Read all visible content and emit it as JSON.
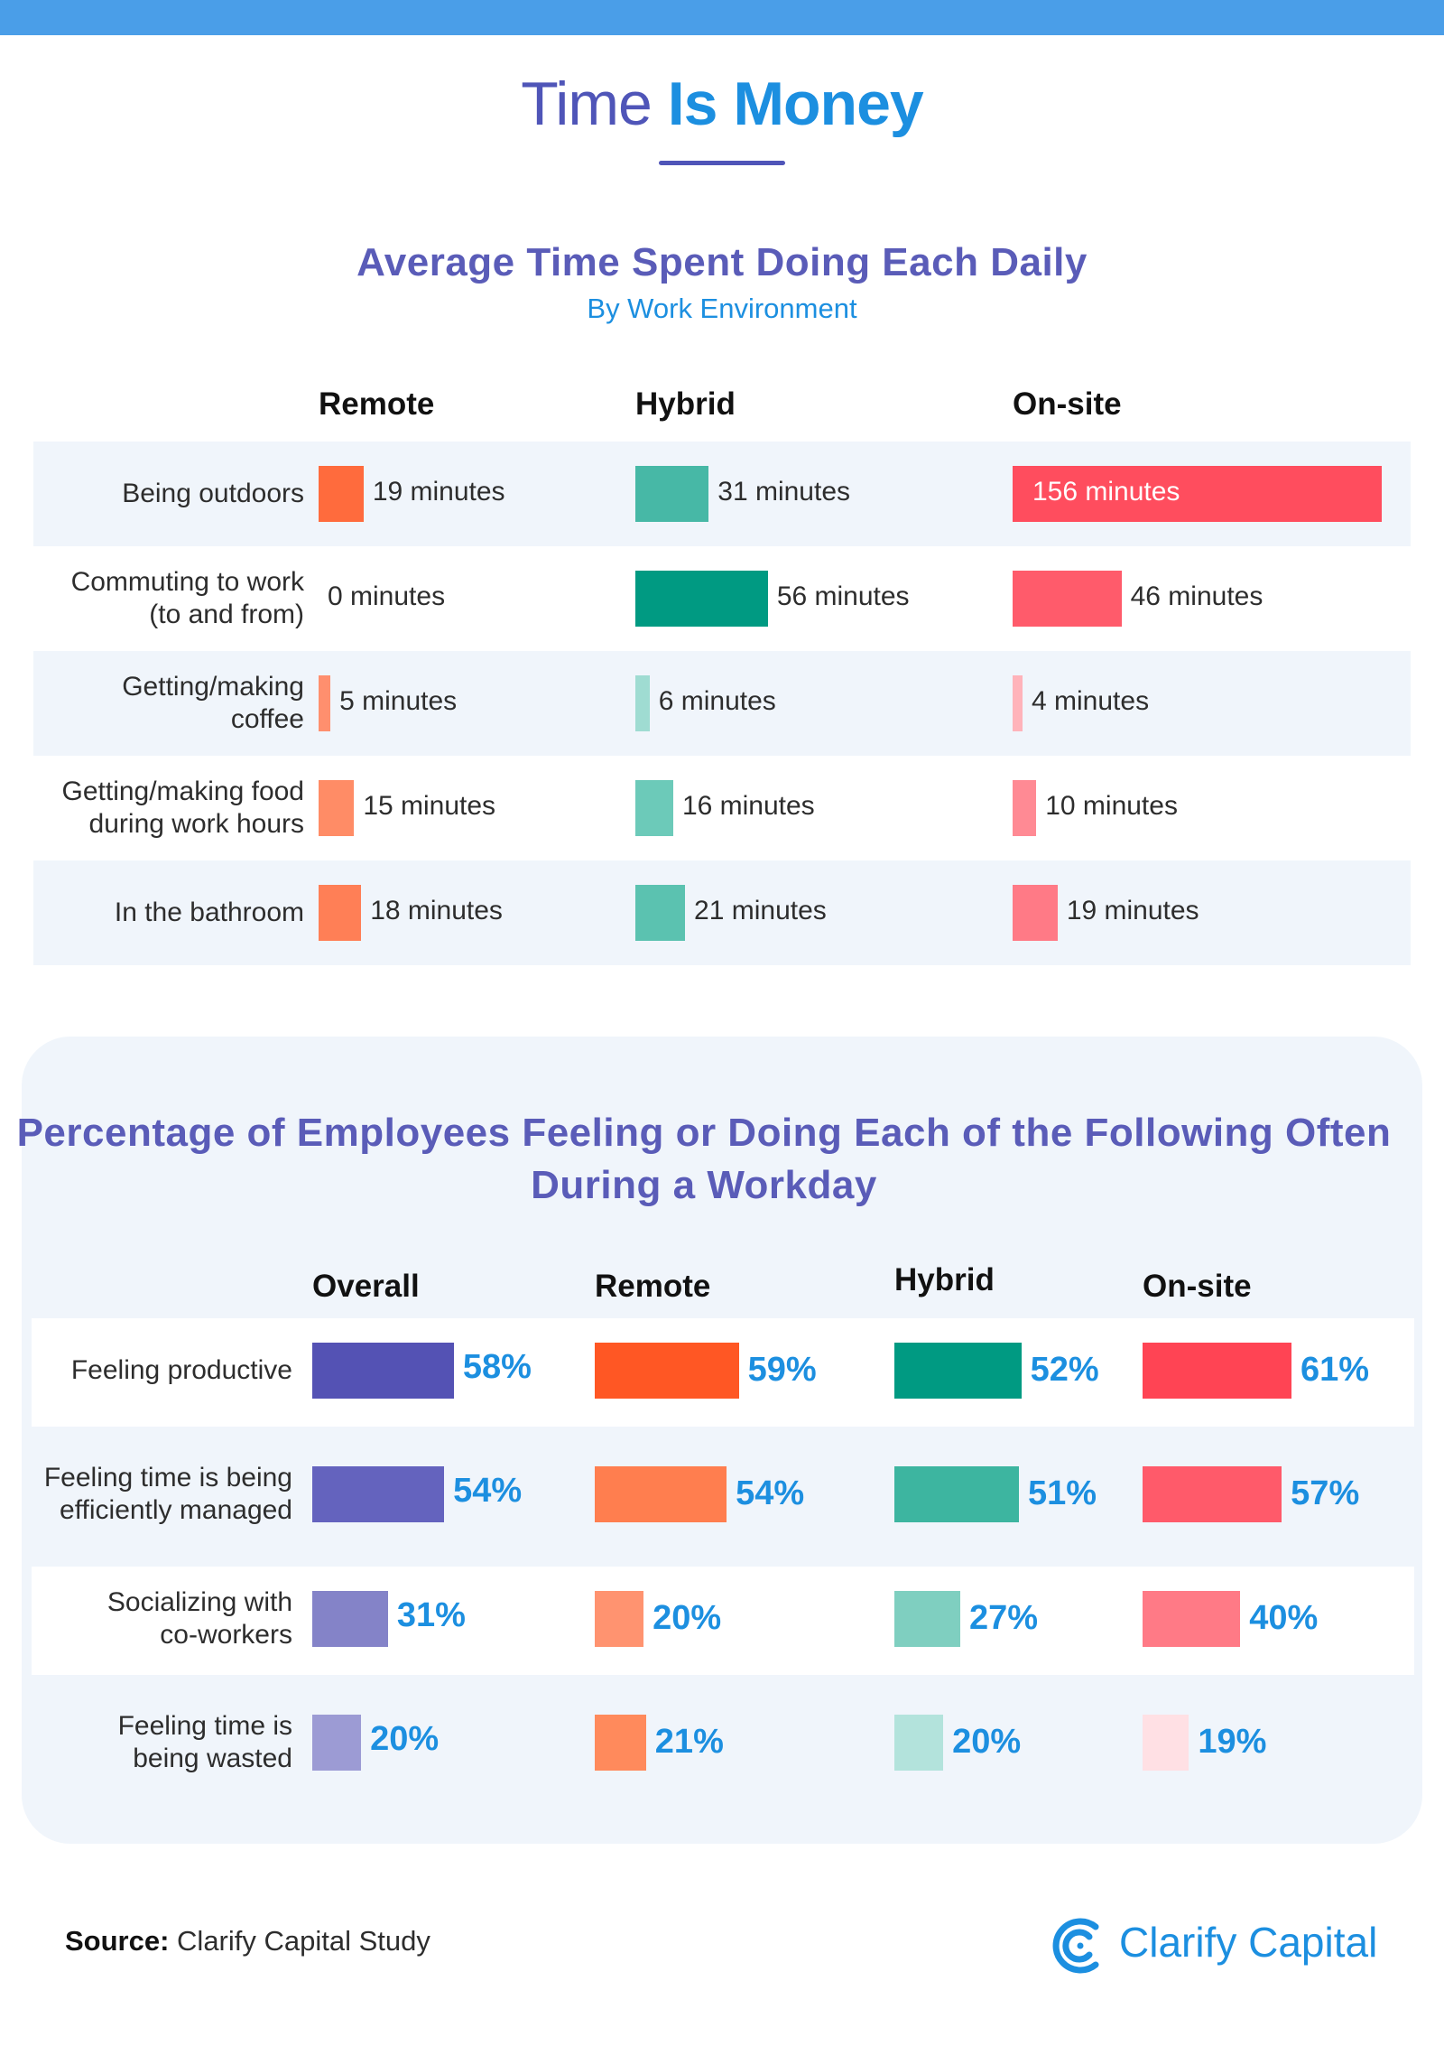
{
  "title": {
    "part1": "Time",
    "part2": "Is Money"
  },
  "source": {
    "label": "Source:",
    "text": "Clarify Capital Study"
  },
  "brand": {
    "name": "Clarify Capital",
    "logo_icon": "clarify-capital-logo-icon",
    "color": "#1c8fe0"
  },
  "chart_data": [
    {
      "type": "bar",
      "title": "Average Time Spent Doing Each Daily",
      "subtitle": "By Work Environment",
      "unit": "minutes",
      "categories": [
        "Being outdoors",
        "Commuting to work\n(to and from)",
        "Getting/making\ncoffee",
        "Getting/making food\nduring work hours",
        "In the bathroom"
      ],
      "series": [
        {
          "name": "Remote",
          "values": [
            19,
            0,
            5,
            15,
            18
          ],
          "labels": [
            "19 minutes",
            "0 minutes",
            "5 minutes",
            "15 minutes",
            "18 minutes"
          ],
          "colors": [
            "#ff6b3d",
            "#ff6b3d",
            "#ff8f6e",
            "#ff8c66",
            "#ff7f56"
          ]
        },
        {
          "name": "Hybrid",
          "values": [
            31,
            56,
            6,
            16,
            21
          ],
          "labels": [
            "31 minutes",
            "56 minutes",
            "6 minutes",
            "16 minutes",
            "21 minutes"
          ],
          "colors": [
            "#47b8a6",
            "#009a82",
            "#9fdcd2",
            "#6ccab9",
            "#5bc2b0"
          ]
        },
        {
          "name": "On-site",
          "values": [
            156,
            46,
            4,
            10,
            19
          ],
          "labels": [
            "156 minutes",
            "46 minutes",
            "4 minutes",
            "10 minutes",
            "19 minutes"
          ],
          "colors": [
            "#ff4d5e",
            "#ff5b6b",
            "#ffb3ba",
            "#ff8a94",
            "#ff7a86"
          ]
        }
      ]
    },
    {
      "type": "bar",
      "title": "Percentage of Employees Feeling or Doing Each of the Following Often During a Workday",
      "unit": "%",
      "categories": [
        "Feeling productive",
        "Feeling time is being\nefficiently managed",
        "Socializing with\nco-workers",
        "Feeling time is\nbeing wasted"
      ],
      "series": [
        {
          "name": "Overall",
          "values": [
            58,
            54,
            31,
            20
          ],
          "labels": [
            "58%",
            "54%",
            "31%",
            "20%"
          ],
          "colors": [
            "#5452b4",
            "#6463be",
            "#8483c8",
            "#9c9bd4"
          ]
        },
        {
          "name": "Remote",
          "values": [
            59,
            54,
            20,
            21
          ],
          "labels": [
            "59%",
            "54%",
            "20%",
            "21%"
          ],
          "colors": [
            "#ff5724",
            "#ff7e4f",
            "#ff9370",
            "#ff8a5c"
          ]
        },
        {
          "name": "Hybrid",
          "values": [
            52,
            51,
            27,
            20
          ],
          "labels": [
            "52%",
            "51%",
            "27%",
            "20%"
          ],
          "colors": [
            "#009a82",
            "#3db5a0",
            "#7fcfc0",
            "#b3e3dc"
          ]
        },
        {
          "name": "On-site",
          "values": [
            61,
            57,
            40,
            19
          ],
          "labels": [
            "61%",
            "57%",
            "40%",
            "19%"
          ],
          "colors": [
            "#ff4454",
            "#ff5a6a",
            "#ff7a86",
            "#ffe0e4"
          ]
        }
      ]
    }
  ]
}
